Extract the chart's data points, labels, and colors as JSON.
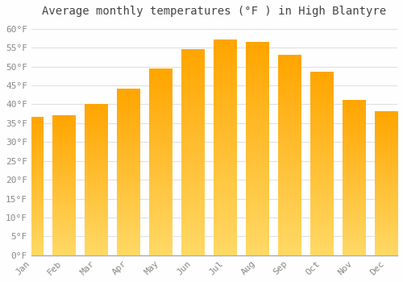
{
  "title": "Average monthly temperatures (°F ) in High Blantyre",
  "months": [
    "Jan",
    "Feb",
    "Mar",
    "Apr",
    "May",
    "Jun",
    "Jul",
    "Aug",
    "Sep",
    "Oct",
    "Nov",
    "Dec"
  ],
  "values": [
    36.5,
    37.0,
    40.0,
    44.0,
    49.5,
    54.5,
    57.0,
    56.5,
    53.0,
    48.5,
    41.0,
    38.0
  ],
  "bar_color_main": "#FFA500",
  "bar_color_light": "#FFD966",
  "background_color": "#FEFEFE",
  "grid_color": "#E0E0E0",
  "ylim": [
    0,
    62
  ],
  "yticks": [
    0,
    5,
    10,
    15,
    20,
    25,
    30,
    35,
    40,
    45,
    50,
    55,
    60
  ],
  "ylabel_suffix": "°F",
  "title_fontsize": 10,
  "tick_fontsize": 8,
  "font_family": "monospace"
}
